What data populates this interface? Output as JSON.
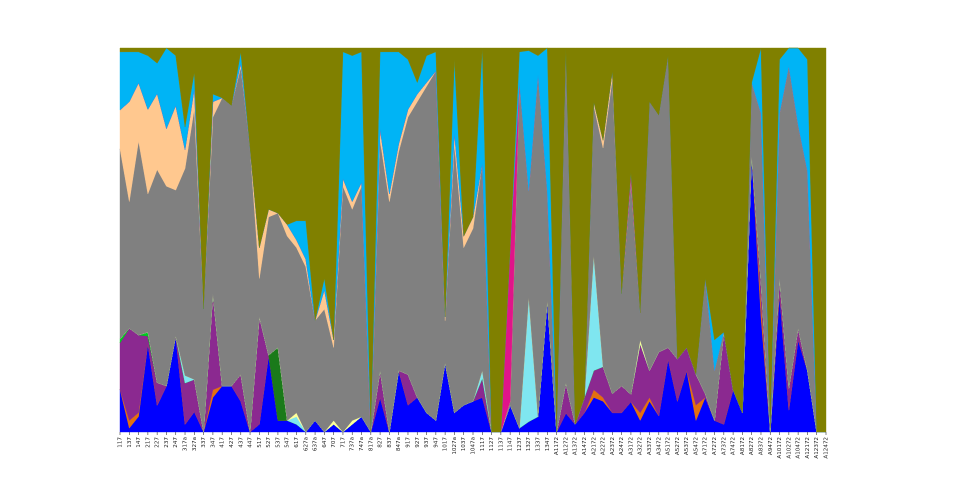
{
  "chart_data": {
    "type": "area",
    "stacked": true,
    "normalized": true,
    "title": "",
    "xlabel": "",
    "ylabel": "",
    "ylim": [
      0,
      1
    ],
    "grid": false,
    "legend": "none",
    "categories": [
      "117",
      "137",
      "147",
      "217",
      "227",
      "237",
      "247",
      "317a",
      "327a",
      "337",
      "347",
      "417",
      "427",
      "437",
      "447",
      "517",
      "527",
      "537",
      "547",
      "617",
      "627a",
      "637a",
      "647",
      "707",
      "717",
      "737a",
      "747a",
      "817a",
      "827",
      "837",
      "847a",
      "917",
      "927",
      "937",
      "947",
      "1017",
      "1027a",
      "1037",
      "1047a",
      "1117",
      "1127",
      "1137",
      "1147",
      "1237",
      "1327",
      "1337",
      "1347",
      "A1172",
      "A1272",
      "A1372",
      "A1472",
      "A2172",
      "A2272",
      "A2372",
      "A2472",
      "A3172",
      "A3272",
      "A3372",
      "A3472",
      "A5172",
      "A5272",
      "A5372",
      "A5472",
      "A7172",
      "A7272",
      "A7372",
      "A7472",
      "A8172",
      "A8272",
      "A8372",
      "A9472",
      "A10172",
      "A10272",
      "A10472",
      "A12172",
      "A12372",
      "A12472"
    ],
    "series": [
      {
        "color": "#0000ff",
        "values": [
          0.11,
          0.01,
          0.04,
          0.23,
          0.07,
          0.12,
          0.25,
          0.02,
          0.05,
          0.0,
          0.09,
          0.12,
          0.12,
          0.08,
          0.0,
          0.02,
          0.2,
          0.03,
          0.03,
          0.02,
          0.0,
          0.03,
          0.0,
          0.02,
          0.0,
          0.02,
          0.04,
          0.0,
          0.09,
          0.0,
          0.16,
          0.07,
          0.09,
          0.05,
          0.03,
          0.18,
          0.05,
          0.07,
          0.08,
          0.09,
          0.0,
          0.0,
          0.07,
          0.01,
          0.04,
          0.04,
          0.52,
          0.0,
          0.05,
          0.02,
          0.05,
          0.09,
          0.08,
          0.05,
          0.05,
          0.08,
          0.03,
          0.08,
          0.05,
          0.19,
          0.08,
          0.16,
          0.03,
          0.09,
          0.03,
          0.02,
          0.11,
          0.05,
          0.72,
          0.3,
          0.0,
          0.36,
          0.06,
          0.24,
          0.16,
          0.0,
          0.0
        ]
      },
      {
        "color": "#e36f0f",
        "values": [
          0.0,
          0.02,
          0.01,
          0.0,
          0.0,
          0.0,
          0.0,
          0.0,
          0.0,
          0.0,
          0.02,
          0.0,
          0.0,
          0.0,
          0.0,
          0.0,
          0.0,
          0.0,
          0.0,
          0.0,
          0.0,
          0.0,
          0.0,
          0.0,
          0.0,
          0.0,
          0.0,
          0.0,
          0.0,
          0.0,
          0.0,
          0.0,
          0.0,
          0.0,
          0.0,
          0.0,
          0.0,
          0.0,
          0.0,
          0.0,
          0.0,
          0.0,
          0.0,
          0.0,
          0.0,
          0.0,
          0.0,
          0.0,
          0.0,
          0.0,
          0.0,
          0.02,
          0.01,
          0.0,
          0.0,
          0.0,
          0.02,
          0.01,
          0.0,
          0.0,
          0.0,
          0.0,
          0.04,
          0.0,
          0.0,
          0.0,
          0.0,
          0.0,
          0.0,
          0.04,
          0.0,
          0.0,
          0.0,
          0.0,
          0.0,
          0.0,
          0.0
        ]
      },
      {
        "color": "#8b2990",
        "values": [
          0.12,
          0.24,
          0.2,
          0.02,
          0.06,
          0.0,
          0.0,
          0.11,
          0.08,
          0.0,
          0.25,
          0.0,
          0.0,
          0.07,
          0.0,
          0.28,
          0.0,
          0.0,
          0.0,
          0.0,
          0.0,
          0.0,
          0.0,
          0.0,
          0.0,
          0.0,
          0.0,
          0.0,
          0.07,
          0.0,
          0.0,
          0.08,
          0.0,
          0.0,
          0.0,
          0.0,
          0.0,
          0.0,
          0.0,
          0.05,
          0.0,
          0.0,
          0.0,
          0.0,
          0.0,
          0.0,
          0.0,
          0.0,
          0.08,
          0.0,
          0.04,
          0.05,
          0.08,
          0.05,
          0.07,
          0.02,
          0.18,
          0.07,
          0.2,
          0.03,
          0.11,
          0.06,
          0.08,
          0.01,
          0.0,
          0.24,
          0.0,
          0.0,
          0.0,
          0.05,
          0.0,
          0.04,
          0.06,
          0.03,
          0.0,
          0.0,
          0.0
        ]
      },
      {
        "color": "#1a7a1a",
        "values": [
          0.0,
          0.0,
          0.0,
          0.0,
          0.0,
          0.0,
          0.0,
          0.0,
          0.0,
          0.0,
          0.0,
          0.0,
          0.0,
          0.0,
          0.0,
          0.0,
          0.0,
          0.19,
          0.0,
          0.0,
          0.0,
          0.0,
          0.0,
          0.0,
          0.0,
          0.0,
          0.0,
          0.0,
          0.0,
          0.0,
          0.0,
          0.0,
          0.0,
          0.0,
          0.0,
          0.0,
          0.0,
          0.0,
          0.0,
          0.0,
          0.0,
          0.0,
          0.0,
          0.0,
          0.0,
          0.0,
          0.0,
          0.0,
          0.0,
          0.0,
          0.0,
          0.0,
          0.0,
          0.0,
          0.0,
          0.0,
          0.0,
          0.0,
          0.0,
          0.0,
          0.0,
          0.0,
          0.0,
          0.0,
          0.0,
          0.0,
          0.0,
          0.0,
          0.0,
          0.0,
          0.0,
          0.0,
          0.0,
          0.0,
          0.0,
          0.0,
          0.0
        ]
      },
      {
        "color": "#00cc22",
        "values": [
          0.01,
          0.0,
          0.0,
          0.01,
          0.0,
          0.0,
          0.0,
          0.0,
          0.0,
          0.0,
          0.0,
          0.0,
          0.0,
          0.0,
          0.0,
          0.0,
          0.0,
          0.0,
          0.0,
          0.0,
          0.0,
          0.0,
          0.0,
          0.0,
          0.0,
          0.0,
          0.0,
          0.0,
          0.0,
          0.0,
          0.0,
          0.0,
          0.0,
          0.0,
          0.0,
          0.0,
          0.0,
          0.0,
          0.0,
          0.0,
          0.0,
          0.0,
          0.0,
          0.0,
          0.0,
          0.0,
          0.0,
          0.0,
          0.0,
          0.0,
          0.0,
          0.0,
          0.0,
          0.0,
          0.0,
          0.0,
          0.0,
          0.0,
          0.0,
          0.0,
          0.0,
          0.0,
          0.0,
          0.0,
          0.0,
          0.0,
          0.0,
          0.0,
          0.0,
          0.0,
          0.0,
          0.0,
          0.0,
          0.0,
          0.0,
          0.0,
          0.0
        ]
      },
      {
        "color": "#7fe6f0",
        "values": [
          0.0,
          0.0,
          0.0,
          0.0,
          0.0,
          0.0,
          0.0,
          0.02,
          0.0,
          0.0,
          0.0,
          0.0,
          0.0,
          0.0,
          0.0,
          0.0,
          0.0,
          0.0,
          0.0,
          0.02,
          0.0,
          0.0,
          0.0,
          0.0,
          0.0,
          0.0,
          0.0,
          0.0,
          0.0,
          0.0,
          0.0,
          0.0,
          0.0,
          0.0,
          0.0,
          0.0,
          0.0,
          0.0,
          0.0,
          0.02,
          0.0,
          0.0,
          0.0,
          0.0,
          0.48,
          0.0,
          0.0,
          0.0,
          0.0,
          0.0,
          0.0,
          0.3,
          0.0,
          0.0,
          0.0,
          0.0,
          0.0,
          0.0,
          0.0,
          0.0,
          0.0,
          0.0,
          0.0,
          0.0,
          0.0,
          0.0,
          0.0,
          0.0,
          0.0,
          0.0,
          0.0,
          0.0,
          0.0,
          0.0,
          0.0,
          0.0,
          0.0
        ]
      },
      {
        "color": "#ffff99",
        "values": [
          0.0,
          0.0,
          0.0,
          0.0,
          0.0,
          0.0,
          0.0,
          0.0,
          0.0,
          0.0,
          0.0,
          0.0,
          0.0,
          0.0,
          0.0,
          0.0,
          0.0,
          0.0,
          0.0,
          0.01,
          0.0,
          0.0,
          0.0,
          0.01,
          0.0,
          0.01,
          0.0,
          0.0,
          0.0,
          0.0,
          0.0,
          0.0,
          0.0,
          0.0,
          0.0,
          0.0,
          0.0,
          0.0,
          0.0,
          0.0,
          0.0,
          0.0,
          0.0,
          0.0,
          0.0,
          0.0,
          0.0,
          0.0,
          0.0,
          0.0,
          0.0,
          0.0,
          0.0,
          0.0,
          0.0,
          0.0,
          0.01,
          0.0,
          0.0,
          0.0,
          0.0,
          0.0,
          0.0,
          0.0,
          0.0,
          0.0,
          0.0,
          0.0,
          0.0,
          0.0,
          0.0,
          0.0,
          0.0,
          0.0,
          0.0,
          0.0,
          0.0
        ]
      },
      {
        "color": "#808080",
        "values": [
          0.49,
          0.33,
          0.5,
          0.36,
          0.56,
          0.52,
          0.38,
          0.55,
          0.67,
          0.32,
          0.46,
          0.75,
          0.73,
          0.8,
          0.74,
          0.1,
          0.36,
          0.35,
          0.48,
          0.43,
          0.43,
          0.26,
          0.32,
          0.19,
          0.64,
          0.55,
          0.6,
          0.0,
          0.6,
          0.6,
          0.57,
          0.67,
          0.77,
          0.85,
          0.91,
          0.11,
          0.7,
          0.41,
          0.45,
          0.54,
          0.0,
          0.0,
          0.01,
          0.9,
          0.41,
          0.89,
          0.43,
          0.0,
          0.88,
          0.0,
          0.0,
          0.39,
          0.57,
          0.82,
          0.24,
          0.57,
          0.07,
          0.7,
          0.74,
          0.76,
          0.0,
          0.0,
          0.0,
          0.3,
          0.13,
          0.0,
          0.0,
          0.0,
          0.19,
          0.44,
          0.01,
          0.43,
          0.88,
          0.53,
          0.52,
          0.0,
          0.0
        ]
      },
      {
        "color": "#ffc88f",
        "values": [
          0.1,
          0.26,
          0.15,
          0.22,
          0.2,
          0.15,
          0.22,
          0.05,
          0.05,
          0.0,
          0.04,
          0.0,
          0.0,
          0.01,
          0.0,
          0.08,
          0.02,
          0.0,
          0.03,
          0.02,
          0.02,
          0.0,
          0.05,
          0.02,
          0.02,
          0.02,
          0.01,
          0.0,
          0.03,
          0.02,
          0.02,
          0.02,
          0.02,
          0.01,
          0.0,
          0.01,
          0.03,
          0.03,
          0.03,
          0.0,
          0.0,
          0.0,
          0.0,
          0.0,
          0.0,
          0.0,
          0.0,
          0.0,
          0.01,
          0.0,
          0.0,
          0.01,
          0.02,
          0.02,
          0.0,
          0.0,
          0.0,
          0.0,
          0.0,
          0.0,
          0.0,
          0.0,
          0.0,
          0.0,
          0.0,
          0.0,
          0.0,
          0.0,
          0.0,
          0.0,
          0.0,
          0.0,
          0.0,
          0.0,
          0.0,
          0.0,
          0.0
        ]
      },
      {
        "color": "#e0158a",
        "values": [
          0.0,
          0.0,
          0.0,
          0.0,
          0.0,
          0.0,
          0.0,
          0.0,
          0.0,
          0.0,
          0.0,
          0.0,
          0.0,
          0.0,
          0.0,
          0.0,
          0.0,
          0.0,
          0.0,
          0.0,
          0.0,
          0.0,
          0.0,
          0.0,
          0.0,
          0.0,
          0.0,
          0.0,
          0.0,
          0.0,
          0.0,
          0.0,
          0.0,
          0.0,
          0.0,
          0.0,
          0.0,
          0.0,
          0.0,
          0.0,
          0.0,
          0.0,
          0.4,
          0.0,
          0.0,
          0.0,
          0.0,
          0.0,
          0.0,
          0.0,
          0.0,
          0.0,
          0.0,
          0.0,
          0.0,
          0.02,
          0.0,
          0.0,
          0.0,
          0.0,
          0.0,
          0.0,
          0.0,
          0.0,
          0.0,
          0.0,
          0.0,
          0.0,
          0.0,
          0.0,
          0.0,
          0.0,
          0.0,
          0.0,
          0.0,
          0.0,
          0.0
        ]
      },
      {
        "color": "#00b4f5",
        "values": [
          0.15,
          0.13,
          0.08,
          0.14,
          0.08,
          0.21,
          0.13,
          0.06,
          0.04,
          0.0,
          0.02,
          0.0,
          0.0,
          0.03,
          0.0,
          0.0,
          0.0,
          0.0,
          0.0,
          0.05,
          0.1,
          0.0,
          0.03,
          0.0,
          0.33,
          0.38,
          0.34,
          0.0,
          0.2,
          0.37,
          0.24,
          0.13,
          0.03,
          0.07,
          0.05,
          0.0,
          0.19,
          0.0,
          0.0,
          0.3,
          0.0,
          0.0,
          0.0,
          0.08,
          0.54,
          0.05,
          0.57,
          0.0,
          0.0,
          0.0,
          0.0,
          0.0,
          0.0,
          0.0,
          0.0,
          0.0,
          0.0,
          0.0,
          0.0,
          0.0,
          0.0,
          0.0,
          0.0,
          0.0,
          0.08,
          0.0,
          0.0,
          0.0,
          0.0,
          0.17,
          0.0,
          0.14,
          0.05,
          0.2,
          0.29,
          0.0,
          0.0
        ]
      },
      {
        "color": "#808000",
        "values": [
          0.01,
          0.01,
          0.01,
          0.02,
          0.04,
          0.0,
          0.02,
          0.21,
          0.06,
          0.68,
          0.12,
          0.13,
          0.15,
          0.01,
          0.26,
          0.52,
          0.42,
          0.43,
          0.46,
          0.45,
          0.45,
          0.71,
          0.6,
          0.76,
          0.01,
          0.02,
          0.01,
          1.0,
          0.01,
          0.01,
          0.01,
          0.03,
          0.09,
          0.02,
          0.01,
          0.7,
          0.03,
          0.49,
          0.44,
          0.0,
          1.0,
          1.0,
          0.52,
          0.01,
          0.01,
          0.02,
          0.0,
          1.0,
          0.0,
          0.98,
          0.91,
          0.14,
          0.24,
          0.06,
          0.64,
          0.33,
          0.69,
          0.14,
          0.21,
          0.02,
          0.81,
          0.78,
          0.85,
          0.6,
          0.76,
          0.74,
          0.89,
          0.95,
          0.09,
          0.0,
          0.99,
          0.03,
          0.0,
          0.0,
          0.03,
          1.0,
          1.0
        ]
      }
    ]
  }
}
